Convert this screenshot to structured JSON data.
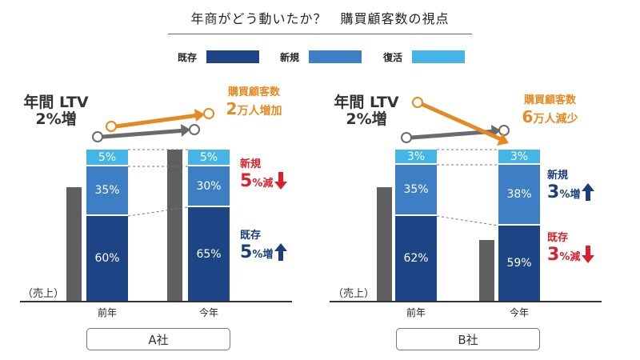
{
  "title": "年商がどう動いたか？　購買顧客数の視点",
  "legend": [
    {
      "label": "既存",
      "color": "#1d4484"
    },
    {
      "label": "新規",
      "color": "#3d7ec5"
    },
    {
      "label": "復活",
      "color": "#45b4e6"
    }
  ],
  "colors": {
    "existing": "#1d4484",
    "new": "#3d7ec5",
    "revival": "#45b4e6",
    "gray": "#5f5f61",
    "orange": "#e58a23",
    "red": "#d9212b",
    "blue": "#1a3d7c"
  },
  "y_axis_label": "（売上）",
  "chart_data": [
    {
      "type": "bar",
      "title": "A社",
      "ltv_label": [
        "年間 LTV",
        "2%増"
      ],
      "categories": [
        "前年",
        "今年"
      ],
      "series": [
        {
          "name": "既存",
          "values": [
            60,
            65
          ]
        },
        {
          "name": "新規",
          "values": [
            35,
            30
          ]
        },
        {
          "name": "復活",
          "values": [
            5,
            5
          ]
        }
      ],
      "value_labels": {
        "既存": [
          "60%",
          "65%"
        ],
        "新規": [
          "35%",
          "30%"
        ],
        "復活": [
          "5%",
          "5%"
        ]
      },
      "customer_change": {
        "label": "購買顧客数",
        "number": "2",
        "unit": "万人増加"
      },
      "annotations": [
        {
          "label": "新規",
          "number": "5",
          "unit": "%減",
          "direction": "down"
        },
        {
          "label": "既存",
          "number": "5",
          "unit": "%増",
          "direction": "up"
        }
      ]
    },
    {
      "type": "bar",
      "title": "B社",
      "ltv_label": [
        "年間 LTV",
        "2%増"
      ],
      "categories": [
        "前年",
        "今年"
      ],
      "series": [
        {
          "name": "既存",
          "values": [
            62,
            59
          ]
        },
        {
          "name": "新規",
          "values": [
            35,
            38
          ]
        },
        {
          "name": "復活",
          "values": [
            3,
            3
          ]
        }
      ],
      "value_labels": {
        "既存": [
          "62%",
          "59%"
        ],
        "新規": [
          "35%",
          "38%"
        ],
        "復活": [
          "3%",
          "3%"
        ]
      },
      "customer_change": {
        "label": "購買顧客数",
        "number": "6",
        "unit": "万人減少"
      },
      "annotations": [
        {
          "label": "新規",
          "number": "3",
          "unit": "%増",
          "direction": "up"
        },
        {
          "label": "既存",
          "number": "3",
          "unit": "%減",
          "direction": "down"
        }
      ]
    }
  ]
}
